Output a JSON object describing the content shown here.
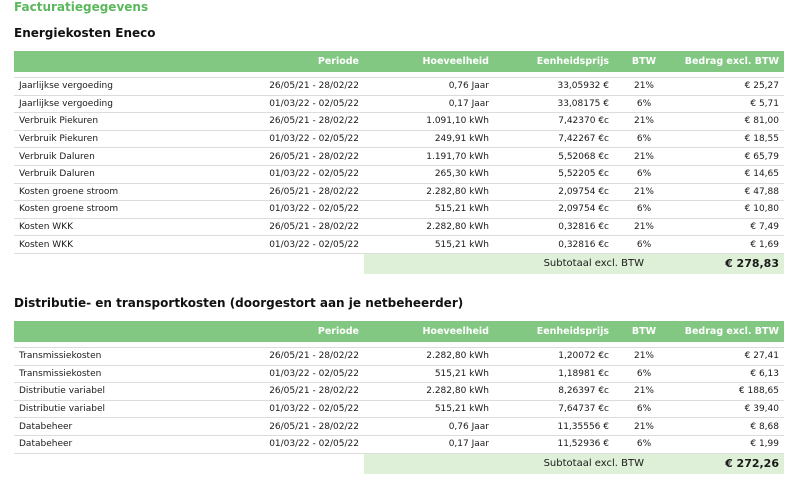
{
  "page_title": "Facturatiegegevens",
  "columns": {
    "description": "",
    "period": "Periode",
    "quantity": "Hoeveelheid",
    "unit_price": "Eenheidsprijs",
    "vat": "BTW",
    "amount": "Bedrag excl. BTW"
  },
  "energy": {
    "title": "Energiekosten Eneco",
    "rows": [
      {
        "description": "Jaarlijkse vergoeding",
        "period": "26/05/21 - 28/02/22",
        "quantity": "0,76 Jaar",
        "unit_price": "33,05932 €",
        "vat": "21%",
        "amount": "€ 25,27"
      },
      {
        "description": "Jaarlijkse vergoeding",
        "period": "01/03/22 - 02/05/22",
        "quantity": "0,17 Jaar",
        "unit_price": "33,08175 €",
        "vat": "6%",
        "amount": "€ 5,71"
      },
      {
        "description": "Verbruik Piekuren",
        "period": "26/05/21 - 28/02/22",
        "quantity": "1.091,10 kWh",
        "unit_price": "7,42370 €c",
        "vat": "21%",
        "amount": "€ 81,00"
      },
      {
        "description": "Verbruik Piekuren",
        "period": "01/03/22 - 02/05/22",
        "quantity": "249,91 kWh",
        "unit_price": "7,42267 €c",
        "vat": "6%",
        "amount": "€ 18,55"
      },
      {
        "description": "Verbruik Daluren",
        "period": "26/05/21 - 28/02/22",
        "quantity": "1.191,70 kWh",
        "unit_price": "5,52068 €c",
        "vat": "21%",
        "amount": "€ 65,79"
      },
      {
        "description": "Verbruik Daluren",
        "period": "01/03/22 - 02/05/22",
        "quantity": "265,30 kWh",
        "unit_price": "5,52205 €c",
        "vat": "6%",
        "amount": "€ 14,65"
      },
      {
        "description": "Kosten groene stroom",
        "period": "26/05/21 - 28/02/22",
        "quantity": "2.282,80 kWh",
        "unit_price": "2,09754 €c",
        "vat": "21%",
        "amount": "€ 47,88"
      },
      {
        "description": "Kosten groene stroom",
        "period": "01/03/22 - 02/05/22",
        "quantity": "515,21 kWh",
        "unit_price": "2,09754 €c",
        "vat": "6%",
        "amount": "€ 10,80"
      },
      {
        "description": "Kosten WKK",
        "period": "26/05/21 - 28/02/22",
        "quantity": "2.282,80 kWh",
        "unit_price": "0,32816 €c",
        "vat": "21%",
        "amount": "€ 7,49"
      },
      {
        "description": "Kosten WKK",
        "period": "01/03/22 - 02/05/22",
        "quantity": "515,21 kWh",
        "unit_price": "0,32816 €c",
        "vat": "6%",
        "amount": "€ 1,69"
      }
    ],
    "subtotal_label": "Subtotaal excl. BTW",
    "subtotal_value": "€ 278,83"
  },
  "distribution": {
    "title": "Distributie- en transportkosten (doorgestort aan je netbeheerder)",
    "rows": [
      {
        "description": "Transmissiekosten",
        "period": "26/05/21 - 28/02/22",
        "quantity": "2.282,80 kWh",
        "unit_price": "1,20072 €c",
        "vat": "21%",
        "amount": "€ 27,41"
      },
      {
        "description": "Transmissiekosten",
        "period": "01/03/22 - 02/05/22",
        "quantity": "515,21 kWh",
        "unit_price": "1,18981 €c",
        "vat": "6%",
        "amount": "€ 6,13"
      },
      {
        "description": "Distributie variabel",
        "period": "26/05/21 - 28/02/22",
        "quantity": "2.282,80 kWh",
        "unit_price": "8,26397 €c",
        "vat": "21%",
        "amount": "€ 188,65"
      },
      {
        "description": "Distributie variabel",
        "period": "01/03/22 - 02/05/22",
        "quantity": "515,21 kWh",
        "unit_price": "7,64737 €c",
        "vat": "6%",
        "amount": "€ 39,40"
      },
      {
        "description": "Databeheer",
        "period": "26/05/21 - 28/02/22",
        "quantity": "0,76 Jaar",
        "unit_price": "11,35556 €",
        "vat": "21%",
        "amount": "€ 8,68"
      },
      {
        "description": "Databeheer",
        "period": "01/03/22 - 02/05/22",
        "quantity": "0,17 Jaar",
        "unit_price": "11,52936 €",
        "vat": "6%",
        "amount": "€ 1,99"
      }
    ],
    "subtotal_label": "Subtotaal excl. BTW",
    "subtotal_value": "€ 272,26"
  }
}
